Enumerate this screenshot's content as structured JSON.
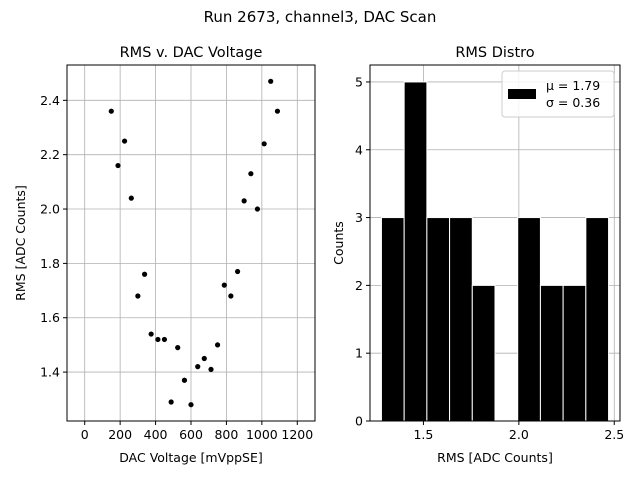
{
  "figure_title": "Run 2673, channel3, DAC Scan",
  "chart_data": [
    {
      "type": "scatter",
      "title": "RMS v. DAC Voltage",
      "xlabel": "DAC Voltage [mVppSE]",
      "ylabel": "RMS [ADC Counts]",
      "xlim": [
        -100,
        1300
      ],
      "ylim": [
        1.22,
        2.53
      ],
      "xticks": [
        0,
        200,
        400,
        600,
        800,
        1000,
        1200
      ],
      "xtick_labels": [
        "0",
        "200",
        "400",
        "600",
        "800",
        "1000",
        "1200"
      ],
      "yticks": [
        1.4,
        1.6,
        1.8,
        2.0,
        2.2,
        2.4
      ],
      "ytick_labels": [
        "1.4",
        "1.6",
        "1.8",
        "2.0",
        "2.2",
        "2.4"
      ],
      "grid": true,
      "marker_color": "#000000",
      "x": [
        150,
        188,
        225,
        263,
        300,
        338,
        375,
        413,
        450,
        488,
        525,
        563,
        600,
        638,
        675,
        713,
        750,
        788,
        825,
        863,
        900,
        938,
        975,
        1013,
        1050,
        1088
      ],
      "y": [
        2.36,
        2.16,
        2.25,
        2.04,
        1.68,
        1.76,
        1.54,
        1.52,
        1.52,
        1.29,
        1.49,
        1.37,
        1.28,
        1.42,
        1.45,
        1.41,
        1.5,
        1.72,
        1.68,
        1.77,
        2.03,
        2.13,
        2.0,
        2.24,
        2.47,
        2.36
      ]
    },
    {
      "type": "bar",
      "title": "RMS Distro",
      "xlabel": "RMS [ADC Counts]",
      "ylabel": "Counts",
      "xlim": [
        1.22,
        2.53
      ],
      "ylim": [
        0,
        5.25
      ],
      "xticks": [
        1.5,
        2.0,
        2.5
      ],
      "xtick_labels": [
        "1.5",
        "2.0",
        "2.5"
      ],
      "yticks": [
        0,
        1,
        2,
        3,
        4,
        5
      ],
      "ytick_labels": [
        "0",
        "1",
        "2",
        "3",
        "4",
        "5"
      ],
      "grid": true,
      "bar_color": "#000000",
      "bin_edges": [
        1.28,
        1.399,
        1.518,
        1.637,
        1.756,
        1.875,
        1.994,
        2.113,
        2.232,
        2.351,
        2.47
      ],
      "values": [
        3,
        5,
        3,
        3,
        2,
        0,
        3,
        2,
        2,
        3
      ],
      "legend": {
        "placement": "top-right",
        "lines": [
          "μ = 1.79",
          "σ = 0.36"
        ]
      }
    }
  ]
}
